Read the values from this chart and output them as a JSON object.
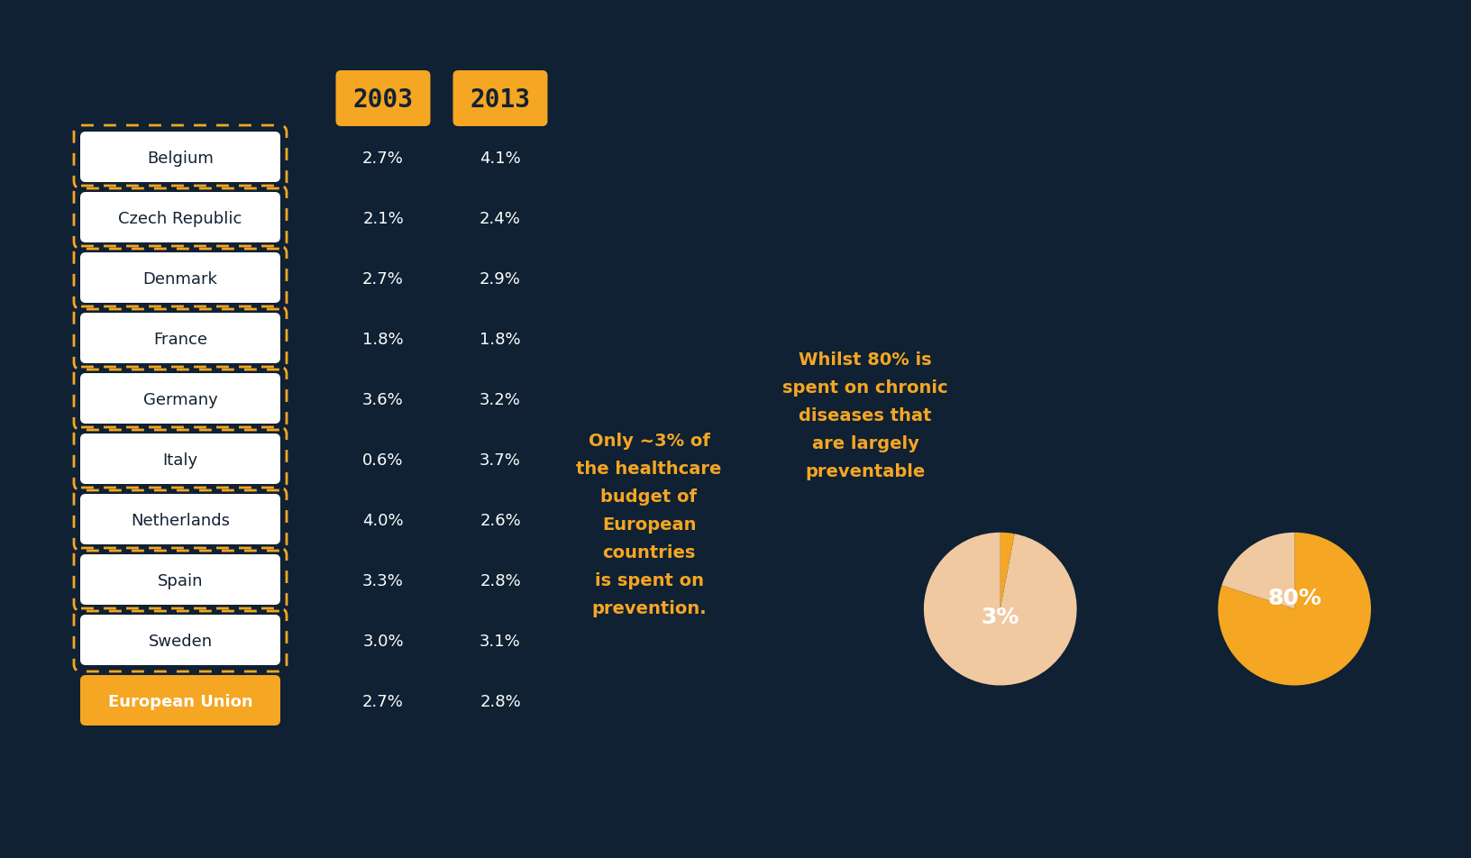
{
  "bg_color": "#0f2133",
  "orange_color": "#f5a623",
  "white_color": "#ffffff",
  "dark_color": "#132233",
  "pie_peach": "#f0c9a0",
  "countries": [
    "Belgium",
    "Czech Republic",
    "Denmark",
    "France",
    "Germany",
    "Italy",
    "Netherlands",
    "Spain",
    "Sweden",
    "European Union"
  ],
  "values_2003": [
    "2.7%",
    "2.1%",
    "2.7%",
    "1.8%",
    "3.6%",
    "0.6%",
    "4.0%",
    "3.3%",
    "3.0%",
    "2.7%"
  ],
  "values_2013": [
    "4.1%",
    "2.4%",
    "2.9%",
    "1.8%",
    "3.2%",
    "3.7%",
    "2.6%",
    "2.8%",
    "3.1%",
    "2.8%"
  ],
  "year_2003": "2003",
  "year_2013": "2013",
  "pie1_pct": 3,
  "pie2_pct": 80,
  "pie1_label": "3%",
  "pie2_label": "80%",
  "text1": "Only ~3% of\nthe healthcare\nbudget of\nEuropean\ncountries\nis spent on\nprevention.",
  "text2": "Whilst 80% is\nspent on chronic\ndiseases that\nare largely\npreventable"
}
